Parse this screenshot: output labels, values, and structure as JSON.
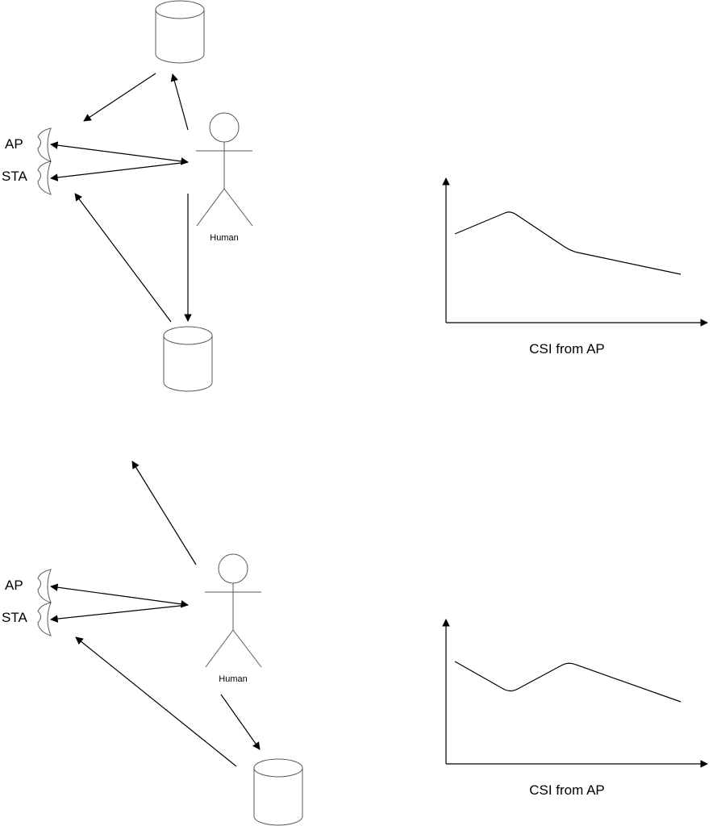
{
  "colors": {
    "line": "#000000",
    "shape_stroke": "#595959",
    "background": "#ffffff"
  },
  "top": {
    "ap_label": "AP",
    "sta_label": "STA",
    "human_label": "Human",
    "chart_caption": "CSI from AP"
  },
  "bottom": {
    "ap_label": "AP",
    "sta_label": "STA",
    "human_label": "Human",
    "chart_caption": "CSI from AP"
  }
}
